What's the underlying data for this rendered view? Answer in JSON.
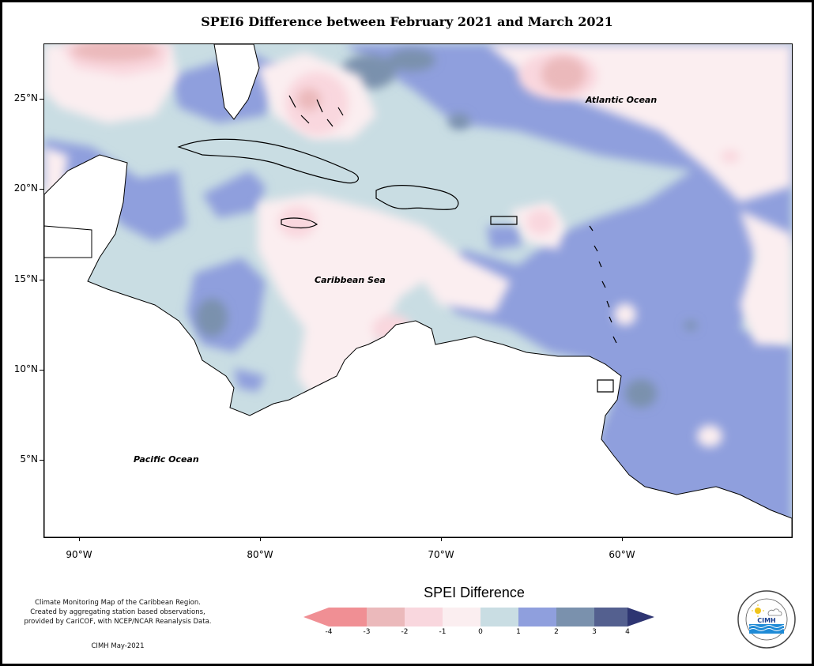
{
  "title": "SPEI6 Difference between February 2021 and March 2021",
  "map": {
    "lat_labels": [
      "25°N",
      "20°N",
      "15°N",
      "10°N",
      "5°N"
    ],
    "lon_labels": [
      "90°W",
      "80°W",
      "70°W",
      "60°W"
    ],
    "labels": {
      "atlantic": "Atlantic Ocean",
      "caribbean": "Caribbean Sea",
      "pacific": "Pacific Ocean"
    }
  },
  "legend": {
    "title": "SPEI Difference",
    "ticks": [
      "-4",
      "-3",
      "-2",
      "-1",
      "0",
      "1",
      "2",
      "3",
      "4"
    ],
    "colors": [
      "#f08f94",
      "#ebb9bb",
      "#f9d7de",
      "#fbeef0",
      "#c9dde3",
      "#8f9fdd",
      "#7a91ad",
      "#54608f",
      "#2e3572"
    ]
  },
  "credits": {
    "lines": [
      "Climate Monitoring Map of the Caribbean Region.",
      "Created by aggregating station based observations,",
      "provided by CariCOF, with NCEP/NCAR Reanalysis Data."
    ],
    "date": "CIMH May-2021"
  },
  "logo": {
    "text": "CIMH",
    "ring_text": "Caribbean Institute for Meteorology and Hydrology",
    "icon": "sun-cloud-waves-icon"
  }
}
